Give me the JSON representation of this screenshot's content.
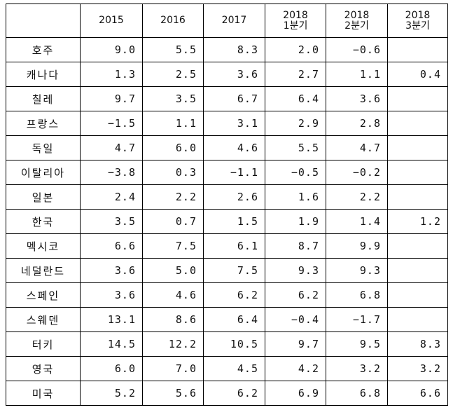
{
  "headers": [
    {
      "line1": "",
      "line2": ""
    },
    {
      "line1": "2015",
      "line2": ""
    },
    {
      "line1": "2016",
      "line2": ""
    },
    {
      "line1": "2017",
      "line2": ""
    },
    {
      "line1": "2018",
      "line2": "1분기"
    },
    {
      "line1": "2018",
      "line2": "2분기"
    },
    {
      "line1": "2018",
      "line2": "3분기"
    }
  ],
  "rows": [
    {
      "name": "호주",
      "values": [
        "9.0",
        "5.5",
        "8.3",
        "2.0",
        "−0.6",
        ""
      ]
    },
    {
      "name": "캐나다",
      "values": [
        "1.3",
        "2.5",
        "3.6",
        "2.7",
        "1.1",
        "0.4"
      ]
    },
    {
      "name": "칠레",
      "values": [
        "9.7",
        "3.5",
        "6.7",
        "6.4",
        "3.6",
        ""
      ]
    },
    {
      "name": "프랑스",
      "values": [
        "−1.5",
        "1.1",
        "3.1",
        "2.9",
        "2.8",
        ""
      ]
    },
    {
      "name": "독일",
      "values": [
        "4.7",
        "6.0",
        "4.6",
        "5.5",
        "4.7",
        ""
      ]
    },
    {
      "name": "이탈리아",
      "values": [
        "−3.8",
        "0.3",
        "−1.1",
        "−0.5",
        "−0.2",
        ""
      ]
    },
    {
      "name": "일본",
      "values": [
        "2.4",
        "2.2",
        "2.6",
        "1.6",
        "2.2",
        ""
      ]
    },
    {
      "name": "한국",
      "values": [
        "3.5",
        "0.7",
        "1.5",
        "1.9",
        "1.4",
        "1.2"
      ]
    },
    {
      "name": "멕시코",
      "values": [
        "6.6",
        "7.5",
        "6.1",
        "8.7",
        "9.9",
        ""
      ]
    },
    {
      "name": "네덜란드",
      "values": [
        "3.6",
        "5.0",
        "7.5",
        "9.3",
        "9.3",
        ""
      ]
    },
    {
      "name": "스페인",
      "values": [
        "3.6",
        "4.6",
        "6.2",
        "6.2",
        "6.8",
        ""
      ]
    },
    {
      "name": "스웨덴",
      "values": [
        "13.1",
        "8.6",
        "6.4",
        "−0.4",
        "−1.7",
        ""
      ]
    },
    {
      "name": "터키",
      "values": [
        "14.5",
        "12.2",
        "10.5",
        "9.7",
        "9.5",
        "8.3"
      ]
    },
    {
      "name": "영국",
      "values": [
        "6.0",
        "7.0",
        "4.5",
        "4.2",
        "3.2",
        "3.2"
      ]
    },
    {
      "name": "미국",
      "values": [
        "5.2",
        "5.6",
        "6.2",
        "6.9",
        "6.8",
        "6.6"
      ]
    }
  ]
}
